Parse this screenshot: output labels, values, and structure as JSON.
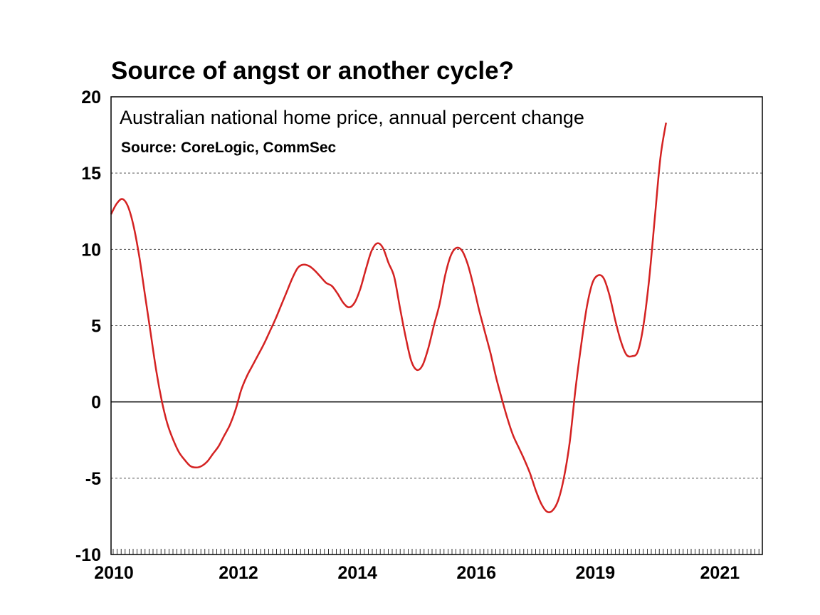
{
  "chart_data": {
    "type": "line",
    "title": "Source of angst or another cycle?",
    "subtitle": "Australian national home price, annual percent change",
    "source": "Source: CoreLogic, CommSec",
    "ylim": [
      -10,
      20
    ],
    "yticks": [
      -10,
      -5,
      0,
      5,
      10,
      15,
      20
    ],
    "xlim": [
      2010.0,
      2021.5
    ],
    "xtick_labels": [
      {
        "x": 2010.0,
        "label": "2010"
      },
      {
        "x": 2012.2,
        "label": "2012"
      },
      {
        "x": 2014.3,
        "label": "2014"
      },
      {
        "x": 2016.4,
        "label": "2016"
      },
      {
        "x": 2018.5,
        "label": "2019"
      },
      {
        "x": 2020.7,
        "label": "2021"
      }
    ],
    "grid": "horizontal dashed",
    "colors": {
      "series": "#d42222",
      "zero_line": "#000000",
      "grid": "#555555"
    },
    "series": [
      {
        "name": "",
        "points": [
          [
            2010.0,
            12.3
          ],
          [
            2010.1,
            13.0
          ],
          [
            2010.2,
            13.3
          ],
          [
            2010.3,
            12.8
          ],
          [
            2010.4,
            11.5
          ],
          [
            2010.5,
            9.5
          ],
          [
            2010.6,
            7.0
          ],
          [
            2010.7,
            4.5
          ],
          [
            2010.8,
            2.0
          ],
          [
            2010.9,
            0.0
          ],
          [
            2011.0,
            -1.5
          ],
          [
            2011.1,
            -2.5
          ],
          [
            2011.2,
            -3.3
          ],
          [
            2011.3,
            -3.8
          ],
          [
            2011.4,
            -4.2
          ],
          [
            2011.5,
            -4.3
          ],
          [
            2011.6,
            -4.2
          ],
          [
            2011.7,
            -3.9
          ],
          [
            2011.8,
            -3.4
          ],
          [
            2011.9,
            -2.9
          ],
          [
            2012.0,
            -2.2
          ],
          [
            2012.1,
            -1.5
          ],
          [
            2012.2,
            -0.5
          ],
          [
            2012.3,
            0.8
          ],
          [
            2012.4,
            1.7
          ],
          [
            2012.5,
            2.4
          ],
          [
            2012.6,
            3.1
          ],
          [
            2012.7,
            3.8
          ],
          [
            2012.8,
            4.6
          ],
          [
            2012.9,
            5.4
          ],
          [
            2013.0,
            6.3
          ],
          [
            2013.1,
            7.2
          ],
          [
            2013.2,
            8.1
          ],
          [
            2013.3,
            8.8
          ],
          [
            2013.4,
            9.0
          ],
          [
            2013.5,
            8.9
          ],
          [
            2013.6,
            8.6
          ],
          [
            2013.7,
            8.2
          ],
          [
            2013.8,
            7.8
          ],
          [
            2013.9,
            7.6
          ],
          [
            2014.0,
            7.1
          ],
          [
            2014.1,
            6.5
          ],
          [
            2014.2,
            6.2
          ],
          [
            2014.3,
            6.5
          ],
          [
            2014.4,
            7.4
          ],
          [
            2014.5,
            8.7
          ],
          [
            2014.6,
            9.9
          ],
          [
            2014.7,
            10.4
          ],
          [
            2014.8,
            10.1
          ],
          [
            2014.9,
            9.1
          ],
          [
            2015.0,
            8.2
          ],
          [
            2015.1,
            6.2
          ],
          [
            2015.2,
            4.3
          ],
          [
            2015.3,
            2.7
          ],
          [
            2015.4,
            2.1
          ],
          [
            2015.5,
            2.4
          ],
          [
            2015.6,
            3.5
          ],
          [
            2015.7,
            5.0
          ],
          [
            2015.8,
            6.4
          ],
          [
            2015.9,
            8.3
          ],
          [
            2016.0,
            9.6
          ],
          [
            2016.1,
            10.1
          ],
          [
            2016.2,
            9.9
          ],
          [
            2016.3,
            9.0
          ],
          [
            2016.4,
            7.6
          ],
          [
            2016.5,
            6.0
          ],
          [
            2016.6,
            4.6
          ],
          [
            2016.7,
            3.2
          ],
          [
            2016.8,
            1.6
          ],
          [
            2016.9,
            0.2
          ],
          [
            2017.0,
            -1.1
          ],
          [
            2017.1,
            -2.2
          ],
          [
            2017.2,
            -3.0
          ],
          [
            2017.3,
            -3.8
          ],
          [
            2017.4,
            -4.7
          ],
          [
            2017.5,
            -5.8
          ],
          [
            2017.6,
            -6.7
          ],
          [
            2017.7,
            -7.2
          ],
          [
            2017.8,
            -7.1
          ],
          [
            2017.9,
            -6.4
          ],
          [
            2018.0,
            -4.9
          ],
          [
            2018.1,
            -2.6
          ],
          [
            2018.2,
            0.8
          ],
          [
            2018.3,
            3.7
          ],
          [
            2018.4,
            6.2
          ],
          [
            2018.5,
            7.8
          ],
          [
            2018.6,
            8.3
          ],
          [
            2018.7,
            8.1
          ],
          [
            2018.8,
            7.0
          ],
          [
            2018.9,
            5.4
          ],
          [
            2019.0,
            4.0
          ],
          [
            2019.1,
            3.1
          ],
          [
            2019.2,
            3.0
          ],
          [
            2019.3,
            3.3
          ],
          [
            2019.4,
            5.0
          ],
          [
            2019.5,
            8.0
          ],
          [
            2019.6,
            12.0
          ],
          [
            2019.7,
            16.0
          ],
          [
            2019.8,
            18.3
          ]
        ]
      }
    ]
  }
}
